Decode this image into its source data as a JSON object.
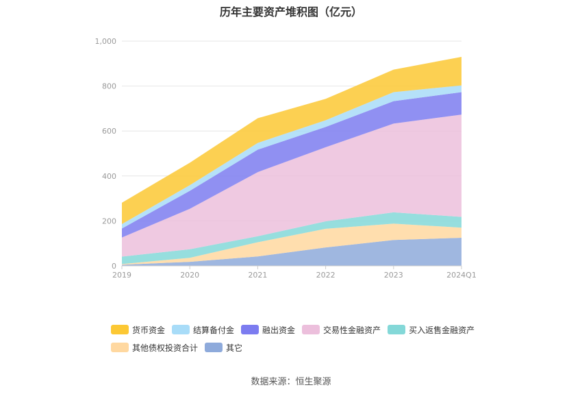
{
  "chart_data": {
    "type": "area",
    "stacked": true,
    "title": "历年主要资产堆积图（亿元）",
    "categories": [
      "2019",
      "2020",
      "2021",
      "2022",
      "2023",
      "2024Q1"
    ],
    "ylim": [
      0,
      1000
    ],
    "yticks": [
      "0",
      "200",
      "400",
      "600",
      "800",
      "1,000"
    ],
    "grid": true,
    "legend_position": "bottom",
    "series": [
      {
        "name": "其它",
        "color": "#8eaadb",
        "values": [
          5,
          18,
          42,
          82,
          115,
          125
        ]
      },
      {
        "name": "其他债权投资合计",
        "color": "#ffd8a0",
        "values": [
          3,
          18,
          63,
          83,
          73,
          45
        ]
      },
      {
        "name": "买入返售金融资产",
        "color": "#84d8d8",
        "values": [
          33,
          38,
          27,
          33,
          50,
          48
        ]
      },
      {
        "name": "交易性金融资产",
        "color": "#ecbfdc",
        "values": [
          85,
          180,
          285,
          330,
          395,
          455
        ]
      },
      {
        "name": "融出资金",
        "color": "#7c7cf0",
        "values": [
          40,
          80,
          100,
          90,
          100,
          100
        ]
      },
      {
        "name": "结算备付金",
        "color": "#a8dcf8",
        "values": [
          20,
          25,
          30,
          30,
          40,
          30
        ]
      },
      {
        "name": "货币资金",
        "color": "#fcc834",
        "values": [
          95,
          100,
          110,
          95,
          100,
          127
        ]
      }
    ],
    "legend_order": [
      "货币资金",
      "结算备付金",
      "融出资金",
      "交易性金融资产",
      "买入返售金融资产",
      "其他债权投资合计",
      "其它"
    ]
  },
  "footer": {
    "source": "数据来源：恒生聚源"
  }
}
